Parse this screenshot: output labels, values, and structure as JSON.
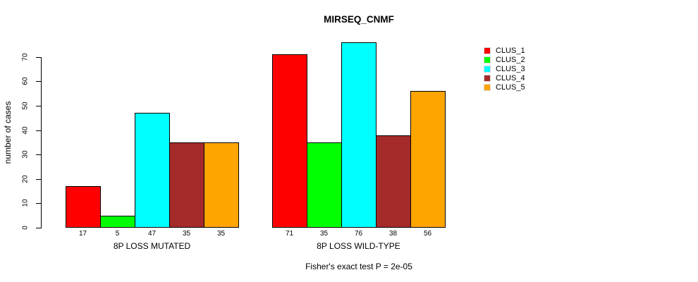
{
  "chart_data": {
    "type": "bar",
    "title": "MIRSEQ_CNMF",
    "xlabel": "",
    "ylabel": "number of cases",
    "categories": [
      "8P LOSS MUTATED",
      "8P LOSS WILD-TYPE"
    ],
    "series": [
      {
        "name": "CLUS_1",
        "color": "#FF0000",
        "values": [
          17,
          71
        ]
      },
      {
        "name": "CLUS_2",
        "color": "#00FF00",
        "values": [
          5,
          35
        ]
      },
      {
        "name": "CLUS_3",
        "color": "#00FFFF",
        "values": [
          47,
          76
        ]
      },
      {
        "name": "CLUS_4",
        "color": "#A52A2A",
        "values": [
          35,
          38
        ]
      },
      {
        "name": "CLUS_5",
        "color": "#FFA500",
        "values": [
          35,
          56
        ]
      }
    ],
    "yticks": [
      0,
      10,
      20,
      30,
      40,
      50,
      60,
      70
    ],
    "ylim": [
      0,
      76
    ],
    "grid": false,
    "bar_value_labels": true,
    "legend_position": "right",
    "legend_labels": [
      "CLUS_1",
      "CLUS_2",
      "CLUS_3",
      "CLUS_4",
      "CLUS_5"
    ],
    "annotation": "Fisher's exact test P = 2e-05",
    "colors": {
      "axis": "#000000",
      "bar_border": "#000000",
      "background": "#FFFFFF"
    }
  }
}
